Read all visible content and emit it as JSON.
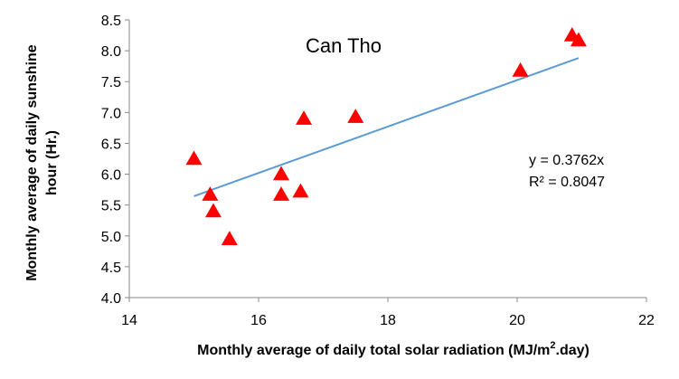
{
  "chart_data": {
    "type": "scatter",
    "title": "Can Tho",
    "xlabel": "Monthly average of daily total solar radiation (MJ/m².day)",
    "xlabel_parts": {
      "pre": "Monthly average of daily total solar radiation (MJ/m",
      "sup": "2",
      "post": ".day)"
    },
    "ylabel": [
      "Monthly average of daily sunshine",
      "hour (Hr.)"
    ],
    "xlim": [
      14,
      22
    ],
    "ylim": [
      4.0,
      8.5
    ],
    "xticks": [
      "14",
      "16",
      "18",
      "20",
      "22"
    ],
    "yticks": [
      "4.0",
      "4.5",
      "5.0",
      "5.5",
      "6.0",
      "6.5",
      "7.0",
      "7.5",
      "8.0",
      "8.5"
    ],
    "grid": false,
    "marker_color": "#ff0000",
    "trendline_color": "#5b9bd5",
    "points": [
      {
        "x": 15.0,
        "y": 6.25
      },
      {
        "x": 15.25,
        "y": 5.67
      },
      {
        "x": 15.3,
        "y": 5.4
      },
      {
        "x": 15.55,
        "y": 4.95
      },
      {
        "x": 16.35,
        "y": 6.0
      },
      {
        "x": 16.35,
        "y": 5.67
      },
      {
        "x": 16.65,
        "y": 5.72
      },
      {
        "x": 16.7,
        "y": 6.9
      },
      {
        "x": 17.5,
        "y": 6.93
      },
      {
        "x": 20.05,
        "y": 7.68
      },
      {
        "x": 20.85,
        "y": 8.25
      },
      {
        "x": 20.95,
        "y": 8.17
      }
    ],
    "trendline": {
      "slope": 0.3762,
      "x_start": 15.0,
      "x_end": 20.95
    },
    "annotations": {
      "equation": "y = 0.3762x",
      "r2": "R² = 0.8047"
    }
  }
}
